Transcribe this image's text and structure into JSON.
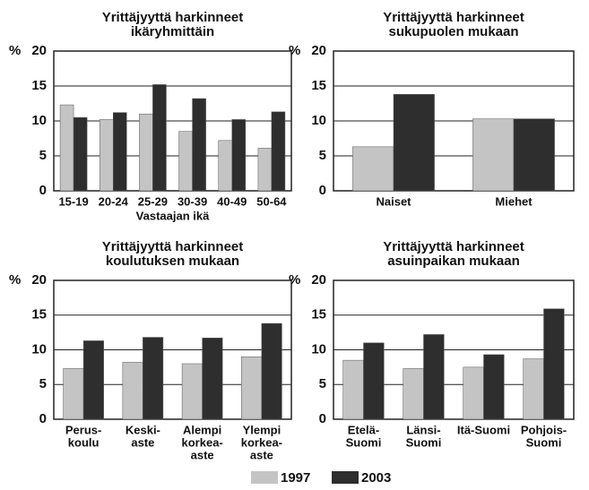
{
  "chart_data": [
    {
      "type": "bar",
      "title": [
        "Yrittäjyyttä harkinneet",
        "ikäryhmittäin"
      ],
      "ylabel": "%",
      "xlabel": "Vastaajan ikä",
      "categories": [
        [
          "15-19"
        ],
        [
          "20-24"
        ],
        [
          "25-29"
        ],
        [
          "30-39"
        ],
        [
          "40-49"
        ],
        [
          "50-64"
        ]
      ],
      "series": [
        {
          "values": [
            12.3,
            10.2,
            11,
            8.5,
            7.2,
            6.1
          ]
        },
        {
          "values": [
            10.5,
            11.2,
            15.2,
            13.2,
            10.2,
            11.3
          ]
        }
      ],
      "ylim": [
        0,
        20
      ],
      "yticks": [
        0,
        5,
        10,
        15,
        20
      ],
      "grid": true
    },
    {
      "type": "bar",
      "title": [
        "Yrittäjyyttä harkinneet",
        "sukupuolen mukaan"
      ],
      "ylabel": "%",
      "categories": [
        [
          "Naiset"
        ],
        [
          "Miehet"
        ]
      ],
      "series": [
        {
          "values": [
            6.3,
            10.3
          ]
        },
        {
          "values": [
            13.8,
            10.3
          ]
        }
      ],
      "ylim": [
        0,
        20
      ],
      "yticks": [
        0,
        5,
        10,
        15,
        20
      ],
      "grid": true
    },
    {
      "type": "bar",
      "title": [
        "Yrittäjyyttä harkinneet",
        "koulutuksen mukaan"
      ],
      "ylabel": "%",
      "categories": [
        [
          "Perus-",
          "koulu"
        ],
        [
          "Keski-",
          "aste"
        ],
        [
          "Alempi",
          "korkea-",
          "aste"
        ],
        [
          "Ylempi",
          "korkea-",
          "aste"
        ]
      ],
      "series": [
        {
          "values": [
            7.3,
            8.2,
            8,
            9
          ]
        },
        {
          "values": [
            11.3,
            11.8,
            11.7,
            13.8
          ]
        }
      ],
      "ylim": [
        0,
        20
      ],
      "yticks": [
        0,
        5,
        10,
        15,
        20
      ],
      "grid": true
    },
    {
      "type": "bar",
      "title": [
        "Yrittäjyyttä harkinneet",
        "asuinpaikan mukaan"
      ],
      "ylabel": "%",
      "categories": [
        [
          "Etelä-",
          "Suomi"
        ],
        [
          "Länsi-",
          "Suomi"
        ],
        [
          "Itä-Suomi"
        ],
        [
          "Pohjois-",
          "Suomi"
        ]
      ],
      "series": [
        {
          "values": [
            8.5,
            7.3,
            7.5,
            8.7
          ]
        },
        {
          "values": [
            11,
            12.2,
            9.3,
            15.9
          ]
        }
      ],
      "ylim": [
        0,
        20
      ],
      "yticks": [
        0,
        5,
        10,
        15,
        20
      ],
      "grid": true
    }
  ],
  "legend": [
    {
      "name": "1997",
      "color": "#c4c4c4"
    },
    {
      "name": "2003",
      "color": "#2e2e2e"
    }
  ]
}
